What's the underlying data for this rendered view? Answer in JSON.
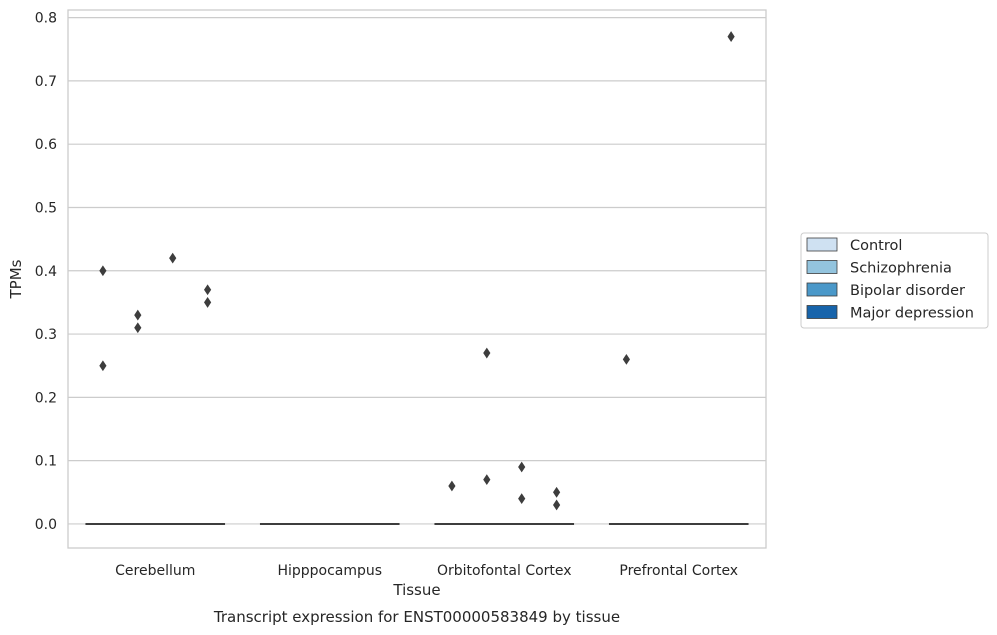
{
  "chart_data": {
    "type": "box",
    "title": "",
    "caption": "Transcript expression for ENST00000583849 by tissue",
    "xlabel": "Tissue",
    "ylabel": "TPMs",
    "ylim": [
      -0.038,
      0.812
    ],
    "yticks": [
      0.0,
      0.1,
      0.2,
      0.3,
      0.4,
      0.5,
      0.6,
      0.7,
      0.8
    ],
    "ytick_labels": [
      "0.0",
      "0.1",
      "0.2",
      "0.3",
      "0.4",
      "0.5",
      "0.6",
      "0.7",
      "0.8"
    ],
    "categories": [
      "Cerebellum",
      "Hipppocampus",
      "Orbitofontal Cortex",
      "Prefrontal Cortex"
    ],
    "grid": true,
    "legend_position": "right",
    "series": [
      {
        "name": "Control",
        "color": "#cfe1f2"
      },
      {
        "name": "Schizophrenia",
        "color": "#93c4de"
      },
      {
        "name": "Bipolar disorder",
        "color": "#4a98c9"
      },
      {
        "name": "Major depression",
        "color": "#1764ab"
      }
    ],
    "boxes": [
      {
        "category": "Cerebellum",
        "median": 0.0,
        "q1": 0.0,
        "q3": 0.0,
        "outliers": [
          {
            "series": 0,
            "y": 0.4
          },
          {
            "series": 0,
            "y": 0.25
          },
          {
            "series": 1,
            "y": 0.33
          },
          {
            "series": 1,
            "y": 0.31
          },
          {
            "series": 2,
            "y": 0.42
          },
          {
            "series": 3,
            "y": 0.37
          },
          {
            "series": 3,
            "y": 0.35
          }
        ]
      },
      {
        "category": "Hipppocampus",
        "median": 0.0,
        "q1": 0.0,
        "q3": 0.0,
        "outliers": []
      },
      {
        "category": "Orbitofontal Cortex",
        "median": 0.0,
        "q1": 0.0,
        "q3": 0.0,
        "outliers": [
          {
            "series": 0,
            "y": 0.06
          },
          {
            "series": 1,
            "y": 0.27
          },
          {
            "series": 1,
            "y": 0.07
          },
          {
            "series": 2,
            "y": 0.09
          },
          {
            "series": 2,
            "y": 0.04
          },
          {
            "series": 3,
            "y": 0.05
          },
          {
            "series": 3,
            "y": 0.03
          }
        ]
      },
      {
        "category": "Prefrontal Cortex",
        "median": 0.0,
        "q1": 0.0,
        "q3": 0.0,
        "outliers": [
          {
            "series": 0,
            "y": 0.26
          },
          {
            "series": 3,
            "y": 0.77
          }
        ]
      }
    ]
  }
}
